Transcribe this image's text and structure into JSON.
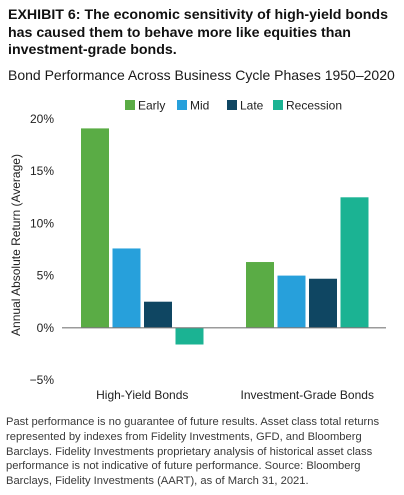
{
  "exhibit_title": "EXHIBIT 6: The economic sensitivity of high-yield bonds has caused them to behave more like equities than investment-grade bonds.",
  "subtitle": "Bond Performance Across Business Cycle Phases 1950–2020",
  "chart_data": {
    "type": "bar",
    "categories": [
      "High-Yield Bonds",
      "Investment-Grade Bonds"
    ],
    "series": [
      {
        "name": "Early",
        "values": [
          19.1,
          6.3
        ],
        "color": "#5aac45"
      },
      {
        "name": "Mid",
        "values": [
          7.6,
          5.0
        ],
        "color": "#27a0db"
      },
      {
        "name": "Late",
        "values": [
          2.5,
          4.7
        ],
        "color": "#0f4662"
      },
      {
        "name": "Recession",
        "values": [
          -1.6,
          12.5
        ],
        "color": "#1bb393"
      }
    ],
    "ylabel": "Annual Absolute Return (Average)",
    "yticks": [
      20,
      15,
      10,
      5,
      0,
      -5
    ],
    "ytick_labels": [
      "20%",
      "15%",
      "10%",
      "5%",
      "0%",
      "−5%"
    ],
    "ylim": [
      -5,
      20
    ],
    "grid": false,
    "legend": "top-right"
  },
  "footnote": "Past performance is no guarantee of future results. Asset class total returns represented by indexes from Fidelity Investments, GFD, and Bloomberg Barclays. Fidelity Investments proprietary analysis of historical asset class performance is not indicative of future performance. Source: Bloomberg Barclays, Fidelity Investments (AART), as of March 31, 2021."
}
